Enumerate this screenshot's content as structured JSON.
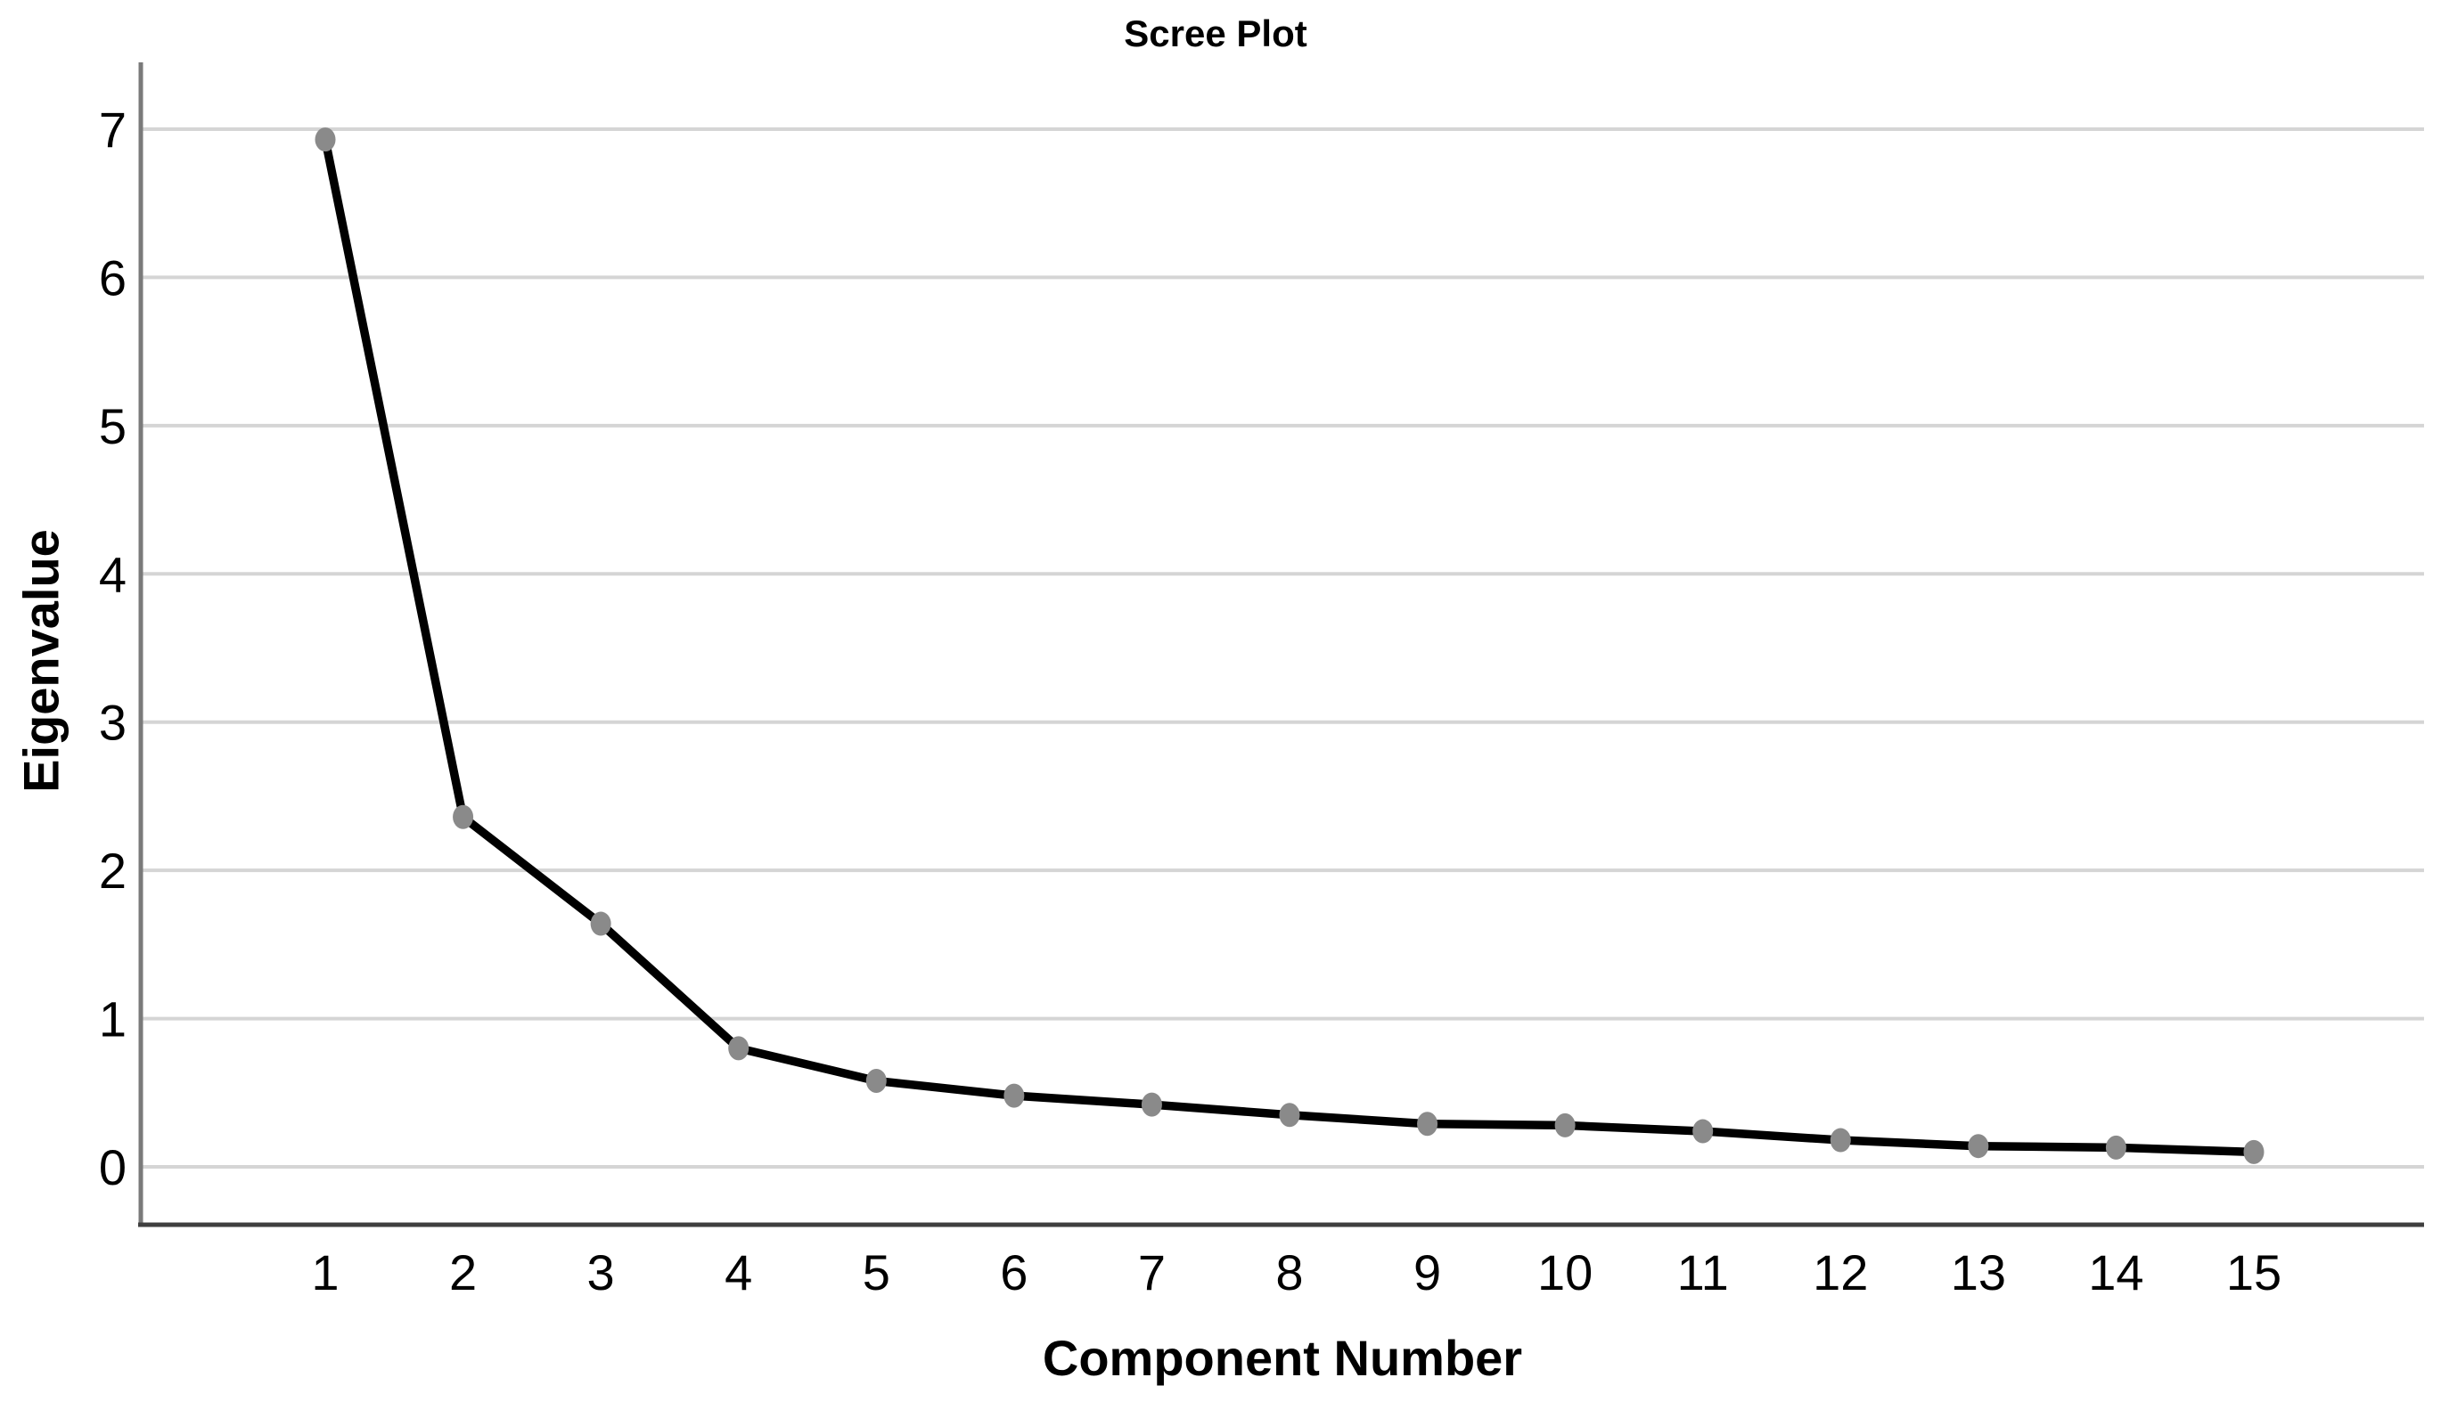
{
  "chart_data": {
    "type": "line",
    "title": "Scree Plot",
    "xlabel": "Component Number",
    "ylabel": "Eigenvalue",
    "categories": [
      1,
      2,
      3,
      4,
      5,
      6,
      7,
      8,
      9,
      10,
      11,
      12,
      13,
      14,
      15
    ],
    "series": [
      {
        "name": "Eigenvalue",
        "values": [
          6.93,
          2.36,
          1.64,
          0.8,
          0.58,
          0.48,
          0.42,
          0.35,
          0.29,
          0.28,
          0.24,
          0.18,
          0.14,
          0.13,
          0.1
        ]
      }
    ],
    "yticks": [
      0,
      1,
      2,
      3,
      4,
      5,
      6,
      7
    ],
    "ylim": [
      -0.39,
      7.42
    ],
    "xlim_categories": [
      1,
      15
    ],
    "grid": "horizontal-only",
    "legend": "none",
    "colors": {
      "line": "#000000",
      "marker": "#8a8a8a",
      "gridline": "#d5d5d5",
      "y_axis": "#7a7a7a",
      "x_axis": "#3f3f3f",
      "text": "#000000",
      "background": "#ffffff"
    }
  }
}
